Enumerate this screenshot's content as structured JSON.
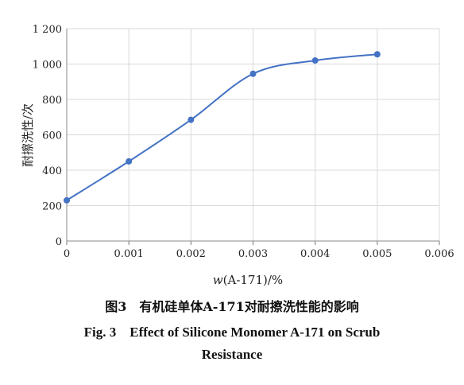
{
  "chart_data": {
    "type": "line",
    "xlabel_italic": "w",
    "xlabel_rest": "(A-171)/%",
    "ylabel": "耐擦洗性/次",
    "x_ticks": [
      "0",
      "0.001",
      "0.002",
      "0.003",
      "0.004",
      "0.005",
      "0.006"
    ],
    "y_ticks": [
      "0",
      "200",
      "400",
      "600",
      "800",
      "1 000",
      "1 200"
    ],
    "xlim": [
      0,
      0.006
    ],
    "ylim": [
      0,
      1200
    ],
    "grid": true,
    "series": [
      {
        "x": [
          0,
          0.001,
          0.002,
          0.003,
          0.004,
          0.005
        ],
        "y": [
          230,
          450,
          685,
          945,
          1020,
          1055
        ],
        "color": "#4472c4",
        "smooth": true,
        "markers": true
      }
    ]
  },
  "caption": {
    "cn": "图3　有机硅单体A-171对耐擦洗性能的影响",
    "en_line1": "Fig. 3　Effect of Silicone Monomer A-171 on Scrub",
    "en_line2": "Resistance"
  }
}
